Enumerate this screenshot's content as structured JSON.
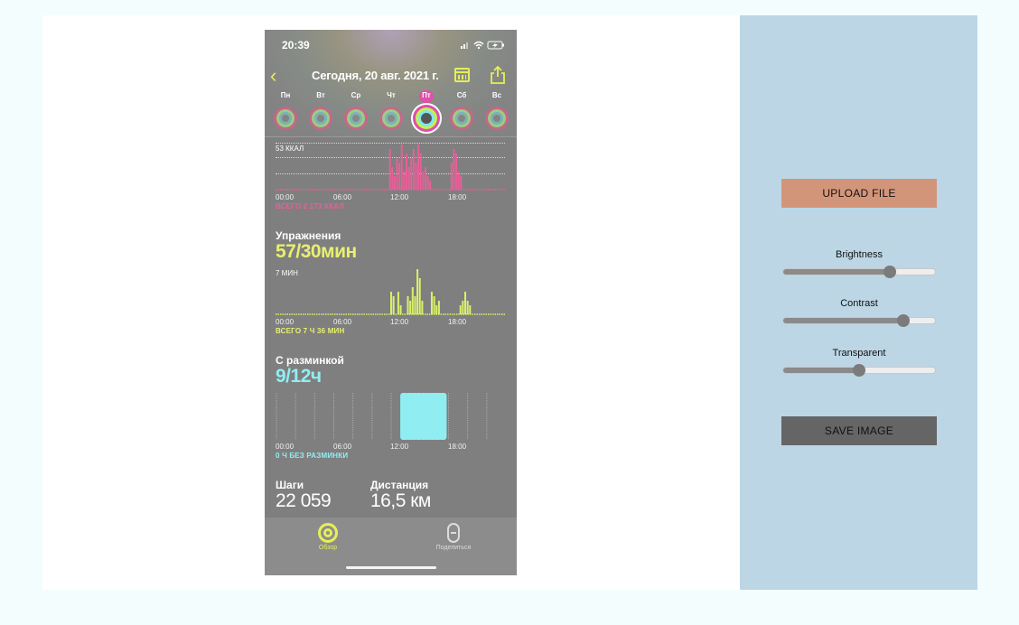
{
  "phone": {
    "status_time": "20:39",
    "date_title": "Сегодня, 20 авг. 2021 г.",
    "days": [
      {
        "label": "Пн",
        "active": false
      },
      {
        "label": "Вт",
        "active": false
      },
      {
        "label": "Ср",
        "active": false
      },
      {
        "label": "Чт",
        "active": false
      },
      {
        "label": "Пт",
        "active": true
      },
      {
        "label": "Сб",
        "active": false
      },
      {
        "label": "Вс",
        "active": false
      }
    ],
    "move": {
      "scale_label": "53 ККАЛ",
      "total": "ВСЕГО 2 173 ККАЛ",
      "color": "#ea5f9a",
      "ticks": [
        "00:00",
        "06:00",
        "12:00",
        "18:00"
      ],
      "hourly_bars": [
        0,
        0,
        0,
        0,
        0,
        0,
        0,
        0,
        0,
        0,
        0,
        0,
        0,
        0,
        0,
        0,
        0,
        0,
        0,
        0,
        0,
        0,
        0,
        0,
        0,
        0,
        0,
        0,
        0,
        0,
        0,
        0,
        0,
        0,
        0,
        0,
        0,
        0,
        0,
        0,
        0,
        0,
        0,
        0,
        0,
        0,
        0,
        0,
        0.9,
        0.5,
        0.3,
        0.7,
        0.6,
        1.0,
        0.4,
        0.8,
        0.5,
        0.7,
        0.9,
        0.6,
        1.0,
        0.8,
        0.4,
        0.5,
        0.3,
        0.2,
        0,
        0,
        0,
        0,
        0,
        0,
        0,
        0,
        0.6,
        0.9,
        0.8,
        0.4,
        0.3,
        0,
        0,
        0,
        0,
        0,
        0,
        0,
        0,
        0,
        0,
        0,
        0,
        0,
        0,
        0,
        0,
        0,
        0
      ]
    },
    "exercise": {
      "title": "Упражнения",
      "value": "57/30мин",
      "scale_label": "7 МИН",
      "total": "ВСЕГО 7 Ч 36 МИН",
      "color": "#d9f26a",
      "ticks": [
        "00:00",
        "06:00",
        "12:00",
        "18:00"
      ],
      "hourly_bars": [
        0,
        0,
        0,
        0,
        0,
        0,
        0,
        0,
        0,
        0,
        0,
        0,
        0,
        0,
        0,
        0,
        0,
        0,
        0,
        0,
        0,
        0,
        0,
        0,
        0,
        0,
        0,
        0,
        0,
        0,
        0,
        0,
        0,
        0,
        0,
        0,
        0,
        0,
        0,
        0,
        0,
        0,
        0,
        0,
        0,
        0,
        0,
        0,
        0.5,
        0.4,
        0,
        0.5,
        0.2,
        0,
        0,
        0.4,
        0.3,
        0.6,
        0.4,
        1.0,
        0.8,
        0.3,
        0,
        0,
        0,
        0.5,
        0.4,
        0.2,
        0.3,
        0,
        0,
        0,
        0,
        0,
        0,
        0,
        0,
        0.2,
        0.3,
        0.5,
        0.3,
        0.2,
        0,
        0,
        0,
        0,
        0,
        0,
        0,
        0,
        0,
        0,
        0,
        0,
        0,
        0
      ]
    },
    "stand": {
      "title": "С разминкой",
      "value": "9/12ч",
      "total": "0 Ч БЕЗ РАЗМИНКИ",
      "color": "#90eef2",
      "ticks": [
        "00:00",
        "06:00",
        "12:00",
        "18:00"
      ],
      "hours_stood": [
        0,
        0,
        0,
        0,
        0,
        0,
        0,
        0,
        0,
        0,
        0,
        0,
        0,
        0,
        0,
        0,
        0,
        0,
        0,
        0,
        0,
        0,
        0,
        0,
        0,
        0,
        1,
        1,
        1,
        1,
        1,
        1,
        1,
        1,
        1,
        0,
        0,
        0,
        0,
        0,
        0,
        0,
        0,
        0,
        0,
        0,
        0,
        0
      ]
    },
    "steps": {
      "label": "Шаги",
      "value": "22 059"
    },
    "distance": {
      "label": "Дистанция",
      "value": "16,5 км"
    },
    "tabs": {
      "overview": "Обзор",
      "sharing": "Поделиться"
    }
  },
  "controls": {
    "upload_label": "UPLOAD FILE",
    "save_label": "SAVE IMAGE",
    "sliders": [
      {
        "label": "Brightness",
        "value": 0.7
      },
      {
        "label": "Contrast",
        "value": 0.79
      },
      {
        "label": "Transparent",
        "value": 0.5
      }
    ]
  }
}
